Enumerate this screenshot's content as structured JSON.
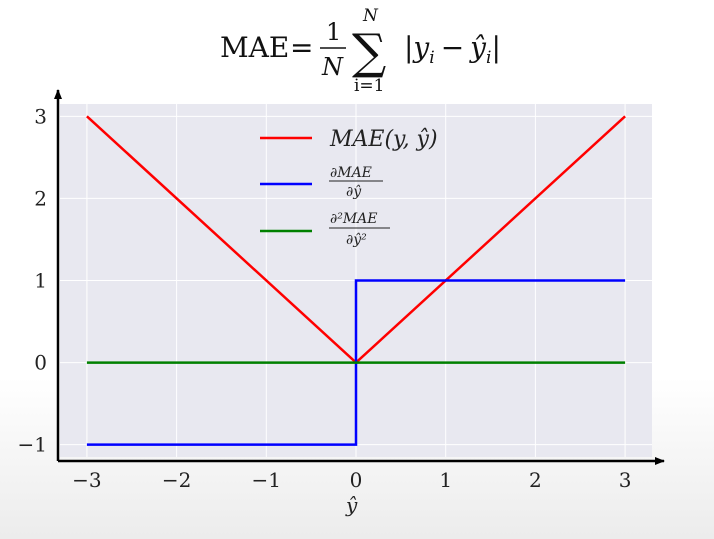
{
  "formula": {
    "lhs": "MAE",
    "eq": "=",
    "frac_num": "1",
    "frac_den": "N",
    "sum": "∑",
    "sum_upper": "N",
    "sum_lower": "i=1",
    "body": "|y",
    "body_sub1": "i",
    "body_minus": "−",
    "body_hat": "ŷ",
    "body_sub2": "i",
    "body_close": "|"
  },
  "chart_data": {
    "type": "line",
    "xlabel": "ŷ",
    "ylabel": "",
    "xlim": [
      -3.3,
      3.3
    ],
    "ylim": [
      -1.15,
      3.15
    ],
    "xticks": [
      -3,
      -2,
      -1,
      0,
      1,
      2,
      3
    ],
    "xtick_labels": [
      "−3",
      "−2",
      "−1",
      "0",
      "1",
      "2",
      "3"
    ],
    "yticks": [
      -1,
      0,
      1,
      2,
      3
    ],
    "ytick_labels": [
      "−1",
      "0",
      "1",
      "2",
      "3"
    ],
    "grid": true,
    "legend_position": "top-center",
    "series": [
      {
        "name": "MAE(y, ŷ)",
        "color": "#ff0000",
        "points": [
          [
            -3,
            3
          ],
          [
            0,
            0
          ],
          [
            3,
            3
          ]
        ]
      },
      {
        "name": "∂MAE / ∂ŷ",
        "color": "#0000ff",
        "points": [
          [
            -3,
            -1
          ],
          [
            0,
            -1
          ],
          [
            0,
            1
          ],
          [
            3,
            1
          ]
        ]
      },
      {
        "name": "∂²MAE / ∂ŷ²",
        "color": "#008000",
        "points": [
          [
            -3,
            0
          ],
          [
            3,
            0
          ]
        ]
      }
    ],
    "colors": {
      "plot_background": "#e8e8f0",
      "grid": "#ffffff",
      "axis": "#000000"
    }
  },
  "legend": {
    "entry1": "MAE(y, ŷ)",
    "entry2_num": "∂MAE",
    "entry2_den": "∂ŷ",
    "entry3_num": "∂²MAE",
    "entry3_den": "∂ŷ²"
  }
}
